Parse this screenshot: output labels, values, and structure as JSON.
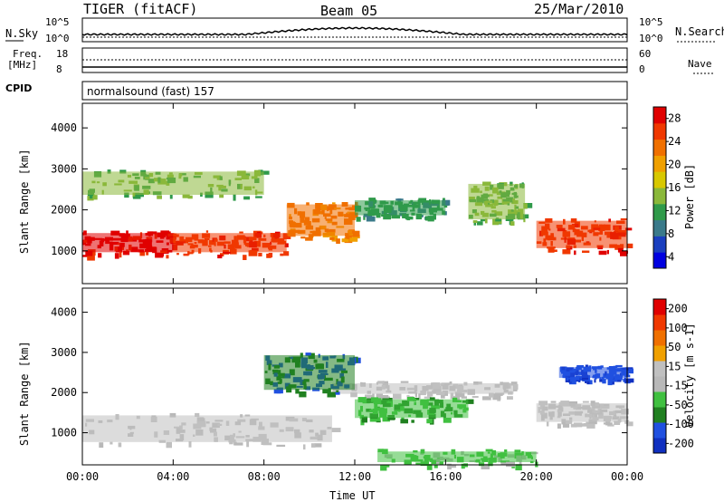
{
  "header": {
    "station": "TIGER (fitACF)",
    "beam": "Beam 05",
    "date": "25/Mar/2010"
  },
  "panels": {
    "nsky_label": "N.Sky",
    "nsky_ticks": [
      "10^5",
      "10^0"
    ],
    "nsearch_label": "N.Search",
    "nsearch_ticks": [
      "10^5",
      "10^0"
    ],
    "freq_label_1": "Freq.",
    "freq_label_2": "[MHz]",
    "freq_ticks": [
      "18",
      "8"
    ],
    "nave_label": "Nave",
    "nave_ticks": [
      "60",
      "0"
    ],
    "cpid_label": "CPID",
    "cpid_value": "normalsound (fast) 157"
  },
  "colors": {
    "power": [
      "#0000e0",
      "#1a3fbf",
      "#3a7a8a",
      "#2f9a4a",
      "#8ab83a",
      "#d8c800",
      "#f0a000",
      "#f07000",
      "#f03800",
      "#e00000"
    ],
    "velocity": [
      "#1030c0",
      "#2050e0",
      "#208020",
      "#40c040",
      "#b8b8b8",
      "#c0c0c0",
      "#f0a000",
      "#f07000",
      "#f03800",
      "#e00000"
    ]
  },
  "chart_data": [
    {
      "type": "heatmap",
      "ylabel": "Slant Range [km]",
      "xlabel": "Time UT",
      "x_ticks": [
        "00:00",
        "04:00",
        "08:00",
        "12:00",
        "16:00",
        "20:00",
        "00:00"
      ],
      "y_ticks": [
        "1000",
        "2000",
        "3000",
        "4000"
      ],
      "xlim_hours": [
        0,
        24
      ],
      "ylim_km": [
        200,
        4600
      ],
      "colorbar": {
        "label": "Power [dB]",
        "ticks": [
          "28",
          "24",
          "20",
          "16",
          "12",
          "8",
          "4"
        ],
        "range": [
          0,
          30
        ]
      },
      "echo_regions": [
        {
          "t": [
            0,
            4
          ],
          "r": [
            900,
            1500
          ],
          "value": 28
        },
        {
          "t": [
            4,
            9
          ],
          "r": [
            900,
            1500
          ],
          "value": 26
        },
        {
          "t": [
            9,
            12
          ],
          "r": [
            1300,
            2200
          ],
          "value": 22
        },
        {
          "t": [
            12,
            16
          ],
          "r": [
            1800,
            2300
          ],
          "value": 10
        },
        {
          "t": [
            17,
            19.5
          ],
          "r": [
            1700,
            2700
          ],
          "value": 12
        },
        {
          "t": [
            20,
            24
          ],
          "r": [
            1000,
            1800
          ],
          "value": 26
        },
        {
          "t": [
            0,
            8
          ],
          "r": [
            2300,
            3000
          ],
          "value": 12
        }
      ]
    },
    {
      "type": "heatmap",
      "ylabel": "Slant Range [km]",
      "xlabel": "Time UT",
      "x_ticks": [
        "00:00",
        "04:00",
        "08:00",
        "12:00",
        "16:00",
        "20:00",
        "00:00"
      ],
      "y_ticks": [
        "1000",
        "2000",
        "3000",
        "4000"
      ],
      "xlim_hours": [
        0,
        24
      ],
      "ylim_km": [
        200,
        4600
      ],
      "colorbar": {
        "label": "Velocity [m s-1]",
        "ticks": [
          "200",
          "100",
          "50",
          "15",
          "-15",
          "-50",
          "-100",
          "-200"
        ],
        "range": [
          -250,
          250
        ]
      },
      "echo_regions": [
        {
          "t": [
            0,
            11
          ],
          "r": [
            700,
            1500
          ],
          "value": 0
        },
        {
          "t": [
            11,
            19
          ],
          "r": [
            1900,
            2300
          ],
          "value": 0
        },
        {
          "t": [
            20,
            24
          ],
          "r": [
            1200,
            1800
          ],
          "value": 0
        },
        {
          "t": [
            8,
            12
          ],
          "r": [
            2000,
            3000
          ],
          "value": -150
        },
        {
          "t": [
            12,
            17
          ],
          "r": [
            1300,
            1900
          ],
          "value": -100
        },
        {
          "t": [
            21,
            24
          ],
          "r": [
            2300,
            2700
          ],
          "value": -200
        },
        {
          "t": [
            13,
            20
          ],
          "r": [
            200,
            600
          ],
          "value": -60
        }
      ]
    }
  ]
}
